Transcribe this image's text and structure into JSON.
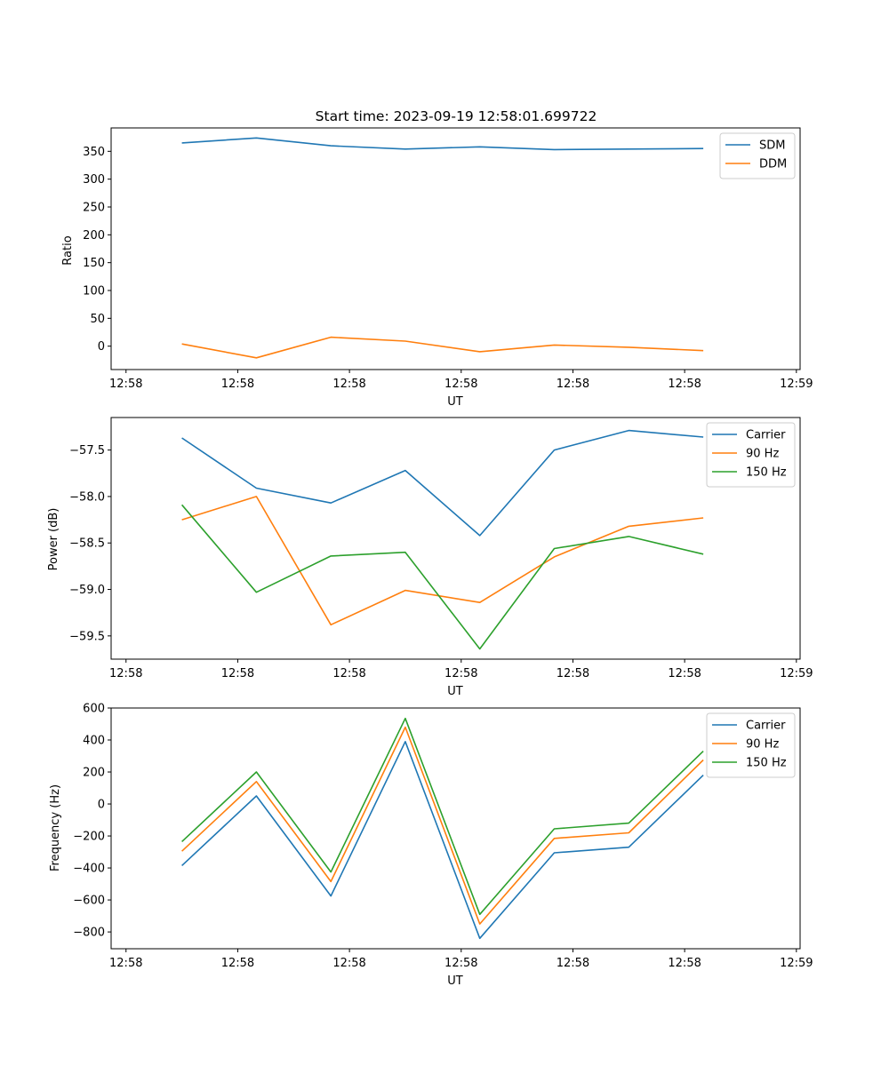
{
  "chart_data": [
    {
      "type": "line",
      "title": "Start time: 2023-09-19 12:58:01.699722",
      "xlabel": "UT",
      "ylabel": "Ratio",
      "x": [
        0,
        1,
        2,
        3,
        4,
        5,
        6,
        7
      ],
      "x_ticks": [
        -0.75,
        0.75,
        2.25,
        3.75,
        5.25,
        6.75,
        8.25
      ],
      "x_tick_labels": [
        "12:58",
        "12:58",
        "12:58",
        "12:58",
        "12:58",
        "12:58",
        "12:59"
      ],
      "xlim": [
        -0.95,
        8.3
      ],
      "ylim": [
        -42,
        392
      ],
      "y_ticks": [
        0,
        50,
        100,
        150,
        200,
        250,
        300,
        350
      ],
      "y_tick_labels": [
        "0",
        "50",
        "100",
        "150",
        "200",
        "250",
        "300",
        "350"
      ],
      "legend": "top-right",
      "series": [
        {
          "name": "SDM",
          "color": "#1f77b4",
          "values": [
            365,
            374,
            360,
            354,
            358,
            353,
            354,
            355
          ]
        },
        {
          "name": "DDM",
          "color": "#ff7f0e",
          "values": [
            4,
            -21,
            16,
            9,
            -10,
            2,
            -2,
            -8
          ]
        }
      ]
    },
    {
      "type": "line",
      "title": "",
      "xlabel": "UT",
      "ylabel": "Power (dB)",
      "x": [
        0,
        1,
        2,
        3,
        4,
        5,
        6,
        7
      ],
      "x_ticks": [
        -0.75,
        0.75,
        2.25,
        3.75,
        5.25,
        6.75,
        8.25
      ],
      "x_tick_labels": [
        "12:58",
        "12:58",
        "12:58",
        "12:58",
        "12:58",
        "12:58",
        "12:59"
      ],
      "xlim": [
        -0.95,
        8.3
      ],
      "ylim": [
        -59.75,
        -57.15
      ],
      "y_ticks": [
        -59.5,
        -59.0,
        -58.5,
        -58.0,
        -57.5
      ],
      "y_tick_labels": [
        "−59.5",
        "−59.0",
        "−58.5",
        "−58.0",
        "−57.5"
      ],
      "legend": "top-right",
      "series": [
        {
          "name": "Carrier",
          "color": "#1f77b4",
          "values": [
            -57.37,
            -57.91,
            -58.07,
            -57.72,
            -58.42,
            -57.5,
            -57.29,
            -57.36
          ]
        },
        {
          "name": "90 Hz",
          "color": "#ff7f0e",
          "values": [
            -58.25,
            -58.0,
            -59.38,
            -59.01,
            -59.14,
            -58.65,
            -58.32,
            -58.23
          ]
        },
        {
          "name": "150 Hz",
          "color": "#2ca02c",
          "values": [
            -58.09,
            -59.03,
            -58.64,
            -58.6,
            -59.64,
            -58.56,
            -58.43,
            -58.62
          ]
        }
      ]
    },
    {
      "type": "line",
      "title": "",
      "xlabel": "UT",
      "ylabel": "Frequency (Hz)",
      "x": [
        0,
        1,
        2,
        3,
        4,
        5,
        6,
        7
      ],
      "x_ticks": [
        -0.75,
        0.75,
        2.25,
        3.75,
        5.25,
        6.75,
        8.25
      ],
      "x_tick_labels": [
        "12:58",
        "12:58",
        "12:58",
        "12:58",
        "12:58",
        "12:58",
        "12:59"
      ],
      "xlim": [
        -0.95,
        8.3
      ],
      "ylim": [
        -905,
        600
      ],
      "y_ticks": [
        -800,
        -600,
        -400,
        -200,
        0,
        200,
        400,
        600
      ],
      "y_tick_labels": [
        "−800",
        "−600",
        "−400",
        "−200",
        "0",
        "200",
        "400",
        "600"
      ],
      "legend": "top-right",
      "series": [
        {
          "name": "Carrier",
          "color": "#1f77b4",
          "values": [
            -385,
            50,
            -575,
            390,
            -840,
            -305,
            -270,
            180
          ]
        },
        {
          "name": "90 Hz",
          "color": "#ff7f0e",
          "values": [
            -295,
            140,
            -485,
            480,
            -750,
            -215,
            -180,
            275
          ]
        },
        {
          "name": "150 Hz",
          "color": "#2ca02c",
          "values": [
            -235,
            200,
            -425,
            535,
            -690,
            -155,
            -120,
            330
          ]
        }
      ]
    }
  ]
}
